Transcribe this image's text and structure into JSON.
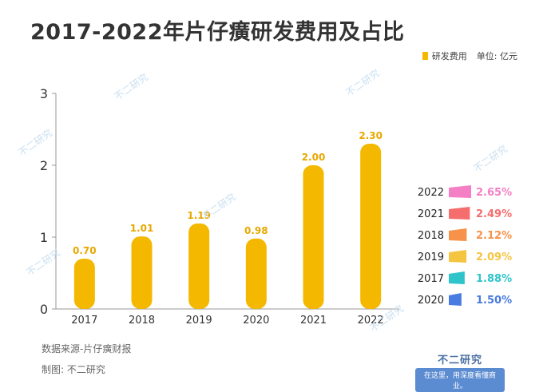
{
  "title": "2017-2022年片仔癀研发费用及占比",
  "legend": {
    "series_label": "研发费用",
    "unit_label": "单位: 亿元",
    "color": "#f5b800"
  },
  "footer": {
    "source": "数据来源-片仔癀财报",
    "author": "制图: 不二研究"
  },
  "brand": {
    "name": "不二研究",
    "slogan": "在这里，用深度看懂商业。",
    "watermark": "不二研究"
  },
  "chart_data": [
    {
      "type": "bar",
      "categories": [
        "2017",
        "2018",
        "2019",
        "2020",
        "2021",
        "2022"
      ],
      "series": [
        {
          "name": "研发费用",
          "values": [
            0.7,
            1.01,
            1.19,
            0.98,
            2.0,
            2.3
          ],
          "labels": [
            "0.70",
            "1.01",
            "1.19",
            "0.98",
            "2.00",
            "2.30"
          ]
        }
      ],
      "ylim": [
        0,
        3
      ],
      "yticks": [
        0,
        1,
        2,
        3
      ],
      "grid": false,
      "bar_color": "#f5b800",
      "label_color": "#e8a800"
    },
    {
      "type": "bar",
      "orientation": "horizontal",
      "categories": [
        "2022",
        "2021",
        "2018",
        "2019",
        "2017",
        "2020"
      ],
      "values": [
        2.65,
        2.49,
        2.12,
        2.09,
        1.88,
        1.5
      ],
      "labels": [
        "2.65%",
        "2.49%",
        "2.12%",
        "2.09%",
        "1.88%",
        "1.50%"
      ],
      "colors": [
        "#f57fc4",
        "#f56d6d",
        "#f7924a",
        "#f5c542",
        "#2ec4c9",
        "#4a7be0"
      ]
    }
  ]
}
